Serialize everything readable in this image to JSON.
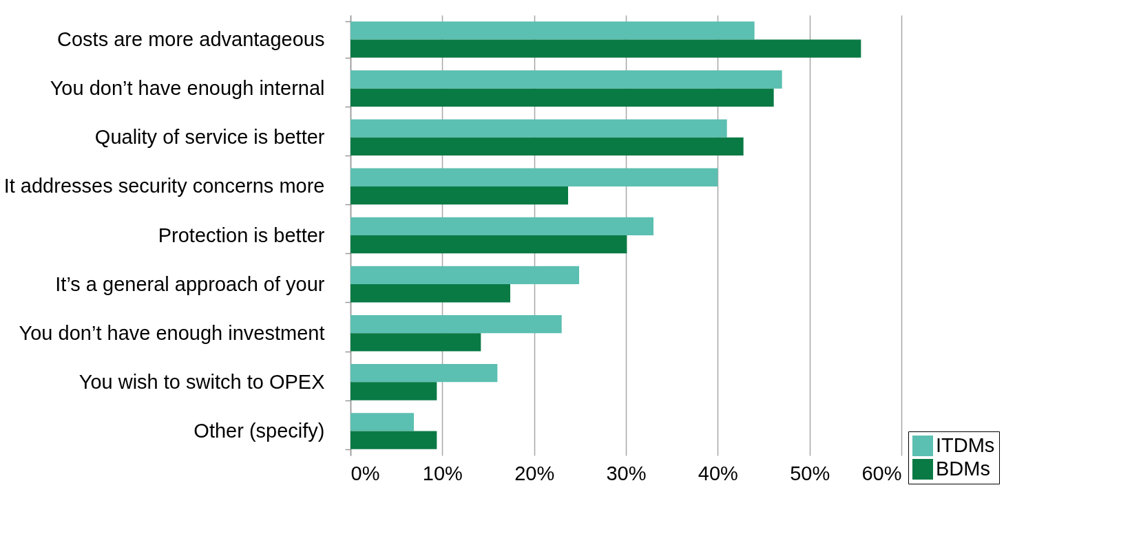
{
  "chart_data": {
    "type": "bar",
    "orientation": "horizontal",
    "categories": [
      "Costs are more advantageous",
      "You don’t have enough internal",
      "Quality of service is better",
      "It addresses security concerns more",
      "Protection is better",
      "It’s a general approach of your",
      "You don’t have enough investment",
      "You wish to switch to OPEX",
      "Other (specify)"
    ],
    "series": [
      {
        "name": "ITDMs",
        "color": "#5bbfb1",
        "values": [
          44,
          47,
          41,
          40,
          33,
          24.9,
          23,
          16,
          6.9
        ]
      },
      {
        "name": "BDMs",
        "color": "#0a7a45",
        "values": [
          55.6,
          46.1,
          42.8,
          23.7,
          30.1,
          17.4,
          14.2,
          9.4,
          9.4
        ]
      }
    ],
    "xlim": [
      0,
      60
    ],
    "xticks": [
      {
        "value": 0,
        "label": "0%"
      },
      {
        "value": 10,
        "label": "10%"
      },
      {
        "value": 20,
        "label": "20%"
      },
      {
        "value": 30,
        "label": "30%"
      },
      {
        "value": 40,
        "label": "40%"
      },
      {
        "value": 50,
        "label": "50%"
      },
      {
        "value": 60,
        "label": "60%"
      }
    ],
    "grid": "x",
    "legend": "bottom right"
  }
}
